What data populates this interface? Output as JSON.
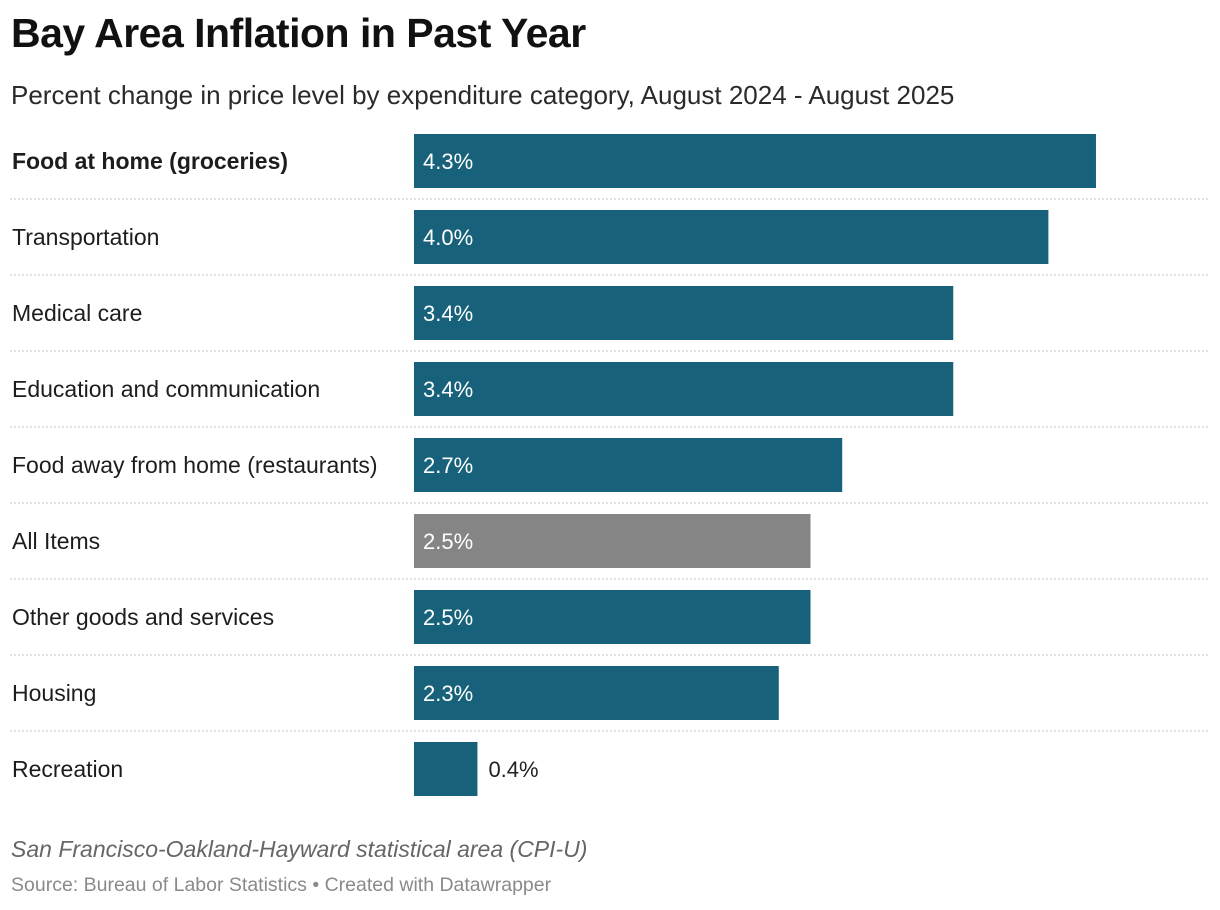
{
  "header": {
    "title": "Bay Area Inflation in Past Year",
    "subtitle": "Percent change in price level by expenditure category, August 2024 - August 2025"
  },
  "colors": {
    "bar": "#17627a",
    "highlight_bar": "#858585",
    "divider": "#cfcfcf",
    "value_label_inside": "#ffffff",
    "value_label_outside": "#222222"
  },
  "chart_data": {
    "type": "bar",
    "orientation": "horizontal",
    "title": "Bay Area Inflation in Past Year",
    "subtitle": "Percent change in price level by expenditure category, August 2024 - August 2025",
    "categories": [
      "Food at home (groceries)",
      "Transportation",
      "Medical care",
      "Education and communication",
      "Food away from home (restaurants)",
      "All Items",
      "Other goods and services",
      "Housing",
      "Recreation"
    ],
    "values": [
      4.3,
      4.0,
      3.4,
      3.4,
      2.7,
      2.5,
      2.5,
      2.3,
      0.4
    ],
    "value_labels": [
      "4.3%",
      "4.0%",
      "3.4%",
      "3.4%",
      "2.7%",
      "2.5%",
      "2.5%",
      "2.3%",
      "0.4%"
    ],
    "bold_category": "Food at home (groceries)",
    "highlight_category": "All Items",
    "unit": "%",
    "xlim": [
      0,
      5.0
    ],
    "grid": false,
    "legend": "none"
  },
  "footer": {
    "notes": "San Francisco-Oakland-Hayward statistical area (CPI-U)",
    "source": "Source: Bureau of Labor Statistics • Created with Datawrapper"
  }
}
